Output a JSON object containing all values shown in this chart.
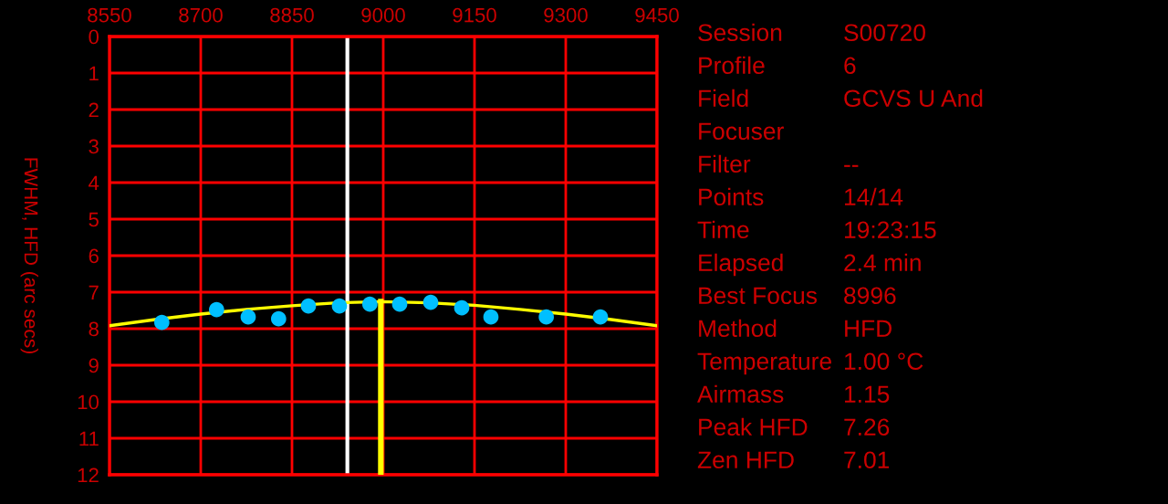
{
  "chart_data": [
    {
      "type": "scatter",
      "ylabel": "FWHM, HFD (arc secs)",
      "xlim": [
        8550,
        9450
      ],
      "xticks": [
        8550,
        8700,
        8850,
        9000,
        9150,
        9300,
        9450
      ],
      "ylim": [
        12,
        0
      ],
      "yticks": [
        0,
        1,
        2,
        3,
        4,
        5,
        6,
        7,
        8,
        9,
        10,
        11,
        12
      ],
      "grid": true,
      "series": [
        {
          "type": "scatter",
          "marker": "circle",
          "color": "#00bfff",
          "x": [
            8636,
            8726,
            8778,
            8828,
            8877,
            8928,
            8978,
            9027,
            9078,
            9129,
            9177,
            9268,
            9357
          ],
          "values": [
            7.83,
            7.48,
            7.68,
            7.73,
            7.38,
            7.38,
            7.33,
            7.33,
            7.28,
            7.43,
            7.68,
            7.68,
            7.68
          ]
        },
        {
          "type": "line",
          "color": "#ffff00",
          "x": [
            8550,
            8625,
            8700,
            8775,
            8850,
            8925,
            8996,
            9075,
            9150,
            9225,
            9300,
            9375,
            9450
          ],
          "values": [
            7.92,
            7.75,
            7.6,
            7.47,
            7.37,
            7.29,
            7.26,
            7.29,
            7.36,
            7.47,
            7.6,
            7.75,
            7.92
          ]
        }
      ],
      "ref_lines": [
        {
          "axis": "x",
          "value": 8941,
          "color": "#ffffff"
        },
        {
          "axis": "x",
          "value": 8996,
          "color": "#ffff00"
        }
      ]
    },
    {
      "type": "other",
      "y_categories": [
        "Session",
        "Profile",
        "Field",
        "Focuser",
        "Filter",
        "Points",
        "Time",
        "Elapsed",
        "Best Focus",
        "Method",
        "Temperature",
        "Airmass",
        "Peak HFD",
        "Zen HFD"
      ],
      "cell_labels": [
        [
          "S00720"
        ],
        [
          "6"
        ],
        [
          "GCVS U And"
        ],
        [
          null
        ],
        [
          "--"
        ],
        [
          "14/14"
        ],
        [
          "19:23:15"
        ],
        [
          "2.4 min"
        ],
        [
          "8996"
        ],
        [
          "HFD"
        ],
        [
          "1.00 °C"
        ],
        [
          "1.15"
        ],
        [
          "7.26"
        ],
        [
          "7.01"
        ]
      ]
    }
  ]
}
